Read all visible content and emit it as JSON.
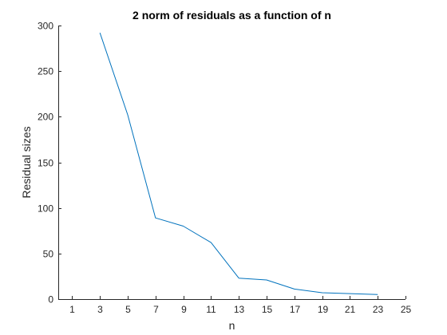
{
  "chart_data": {
    "type": "line",
    "title": "2 norm of residuals as a function of n",
    "xlabel": "n",
    "ylabel": "Residual sizes",
    "xlim": [
      0,
      25
    ],
    "ylim": [
      0,
      300
    ],
    "xticks": [
      1,
      3,
      5,
      7,
      9,
      11,
      13,
      15,
      17,
      19,
      21,
      23,
      25
    ],
    "yticks": [
      0,
      50,
      100,
      150,
      200,
      250,
      300
    ],
    "grid": false,
    "series": [
      {
        "color": "#0072BD",
        "x": [
          3,
          5,
          7,
          9,
          11,
          13,
          15,
          17,
          19,
          21,
          23
        ],
        "y": [
          292,
          202,
          89,
          80,
          62,
          23,
          21,
          11,
          7,
          6,
          5
        ]
      }
    ]
  }
}
